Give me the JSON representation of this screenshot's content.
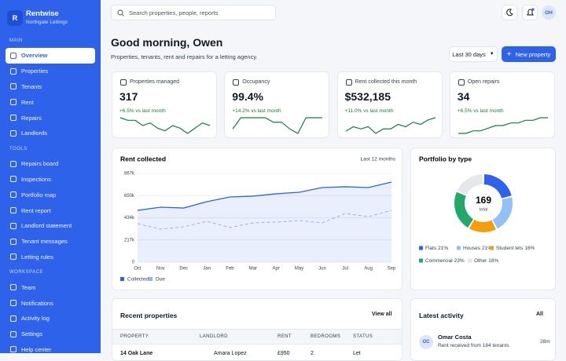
{
  "sidebar": {
    "logo": "R",
    "brand": "Rentwise",
    "org": "Northgate Lettings",
    "sections": [
      {
        "title": "MAIN",
        "items": [
          "Overview",
          "Properties",
          "Tenants",
          "Rent",
          "Repairs",
          "Landlords"
        ]
      },
      {
        "title": "TOOLS",
        "items": [
          "Repairs board",
          "Inspections",
          "Portfolio map",
          "Rent report",
          "Landlord statement",
          "Tenant messages",
          "Letting rules"
        ]
      },
      {
        "title": "WORKSPACE",
        "items": [
          "Team",
          "Notifications",
          "Activity log",
          "Settings",
          "Help center"
        ]
      }
    ],
    "active": "Overview"
  },
  "topbar": {
    "search": "Search properties, people, reports",
    "avatar": "OH"
  },
  "header": {
    "title": "Good morning, Owen",
    "subtitle": "Properties, tenants, rent and repairs for a letting agency.",
    "range": "Last 30 days",
    "button": "New property"
  },
  "kpis": [
    {
      "label": "Properties managed",
      "value": "317",
      "delta": "+6.5% vs last month",
      "sparkline": [
        7,
        6,
        6,
        4,
        5,
        3,
        2,
        4,
        3,
        1,
        3,
        5,
        4
      ]
    },
    {
      "label": "Occupancy",
      "value": "99.4%",
      "delta": "+14.2% vs last month",
      "sparkline": [
        3,
        8,
        8,
        8,
        8,
        6,
        6,
        3,
        1,
        8,
        8,
        8
      ]
    },
    {
      "label": "Rent collected this month",
      "value": "$532,185",
      "delta": "+11.0% vs last month",
      "sparkline": [
        2,
        4,
        3,
        4,
        1,
        3,
        3,
        5,
        4,
        6,
        5,
        7,
        8
      ]
    },
    {
      "label": "Open repairs",
      "value": "34",
      "delta": "+6.5% vs last month",
      "sparkline": [
        1,
        1,
        2,
        2,
        3,
        4,
        4,
        5,
        5,
        6,
        6,
        7,
        7
      ]
    }
  ],
  "chart_data": [
    {
      "type": "line",
      "title": "Rent collected",
      "subtitle": "Last 12 months",
      "categories": [
        "Oct",
        "Nov",
        "Dec",
        "Jan",
        "Feb",
        "Mar",
        "Apr",
        "May",
        "Jun",
        "Jul",
        "Aug",
        "Sep"
      ],
      "series": [
        {
          "name": "Collected",
          "color": "#2f62ea",
          "values": [
            506000,
            537000,
            529000,
            591000,
            637000,
            645000,
            668000,
            683000,
            729000,
            737000,
            729000,
            783000
          ]
        },
        {
          "name": "Due",
          "color": "#93b4f5",
          "values": [
            376000,
            322000,
            345000,
            399000,
            338000,
            384000,
            391000,
            407000,
            384000,
            476000,
            445000,
            506000
          ]
        }
      ],
      "ylim": [
        0,
        867000
      ],
      "yticks": [
        0,
        {
          "value": 216750,
          "label": "217k"
        },
        {
          "value": 433500,
          "label": "434k"
        },
        {
          "value": 650250,
          "label": "650k"
        },
        {
          "value": 867000,
          "label": "867k"
        }
      ]
    },
    {
      "type": "pie",
      "title": "Portfolio by type",
      "total": 169,
      "total_label": "total",
      "categories": [
        "Flats",
        "Houses",
        "Student lets",
        "Commercial",
        "Other"
      ],
      "values": [
        21,
        21,
        16,
        23,
        18
      ],
      "value_labels": [
        "21%",
        "21%",
        "16%",
        "23%",
        "18%"
      ],
      "colors": [
        "#2f62ea",
        "#93c0f7",
        "#f59e0b",
        "#22a86b",
        "#e5e7eb"
      ]
    }
  ],
  "recent_properties": {
    "title": "Recent properties",
    "action": "View all",
    "columns": [
      "PROPERTY",
      "LANDLORD",
      "RENT",
      "BEDROOMS",
      "STATUS"
    ],
    "rows": [
      [
        "14 Oak Lane",
        "Amara Lopez",
        "£950",
        "2",
        "Let"
      ]
    ]
  },
  "activity": {
    "title": "Latest activity",
    "action": "All",
    "items": [
      {
        "initials": "OC",
        "name": "Omar Costa",
        "text": "Rent received from 184 tenants",
        "time": "28m"
      }
    ]
  }
}
